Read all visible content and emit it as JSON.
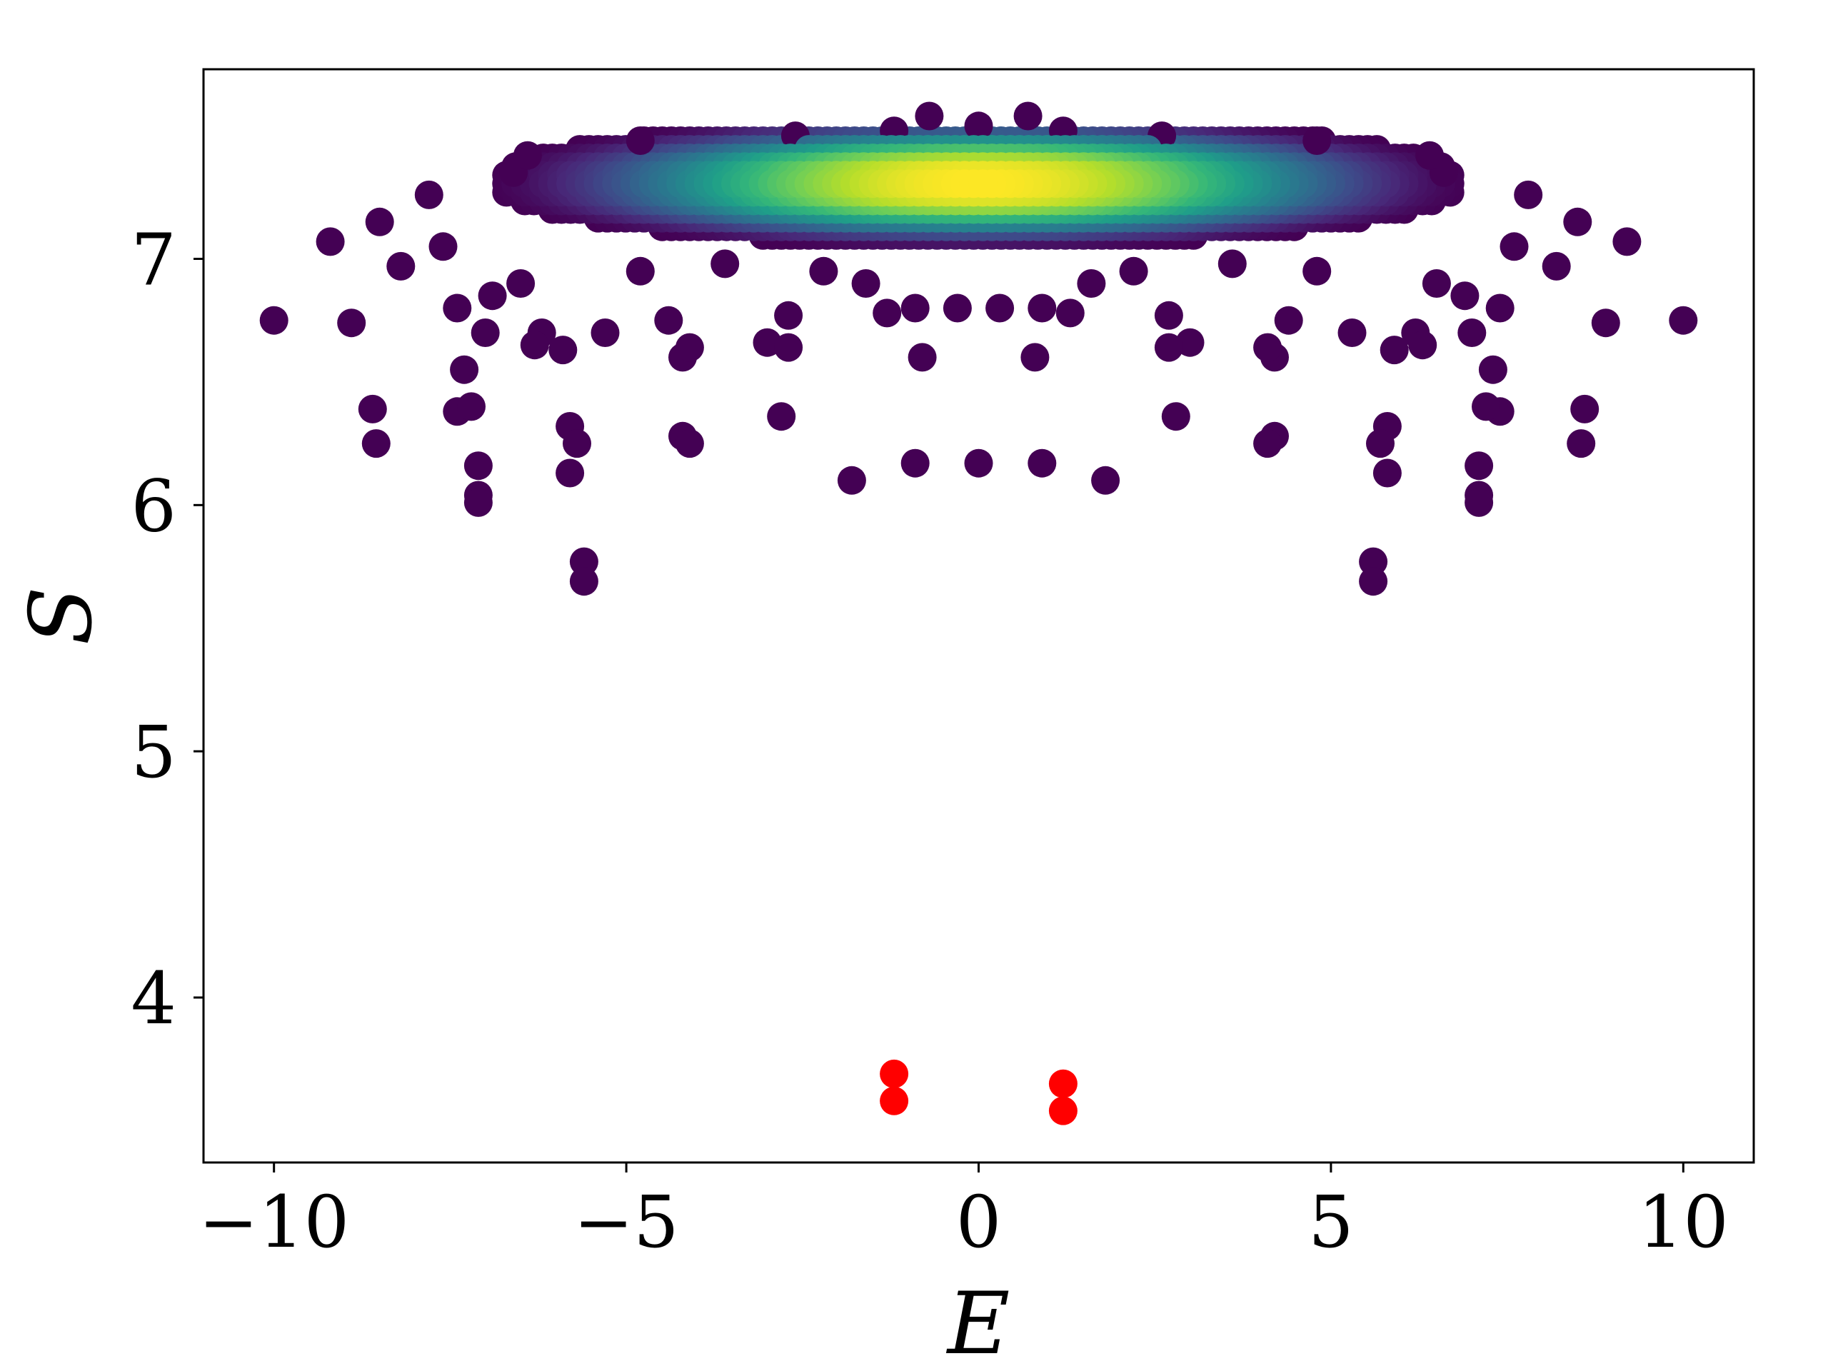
{
  "chart_data": {
    "type": "scatter",
    "title": "",
    "xlabel": "E",
    "ylabel": "S",
    "xlim": [
      -11,
      11
    ],
    "ylim": [
      3.33,
      7.77
    ],
    "x_ticks": [
      -10,
      -5,
      0,
      5,
      10
    ],
    "x_tick_labels": [
      "−10",
      "−5",
      "0",
      "5",
      "10"
    ],
    "y_ticks": [
      4,
      5,
      6,
      7
    ],
    "y_tick_labels": [
      "4",
      "5",
      "6",
      "7"
    ],
    "grid": false,
    "legend": "none",
    "colormap": "viridis",
    "colors": {
      "viridis_low": "#440154",
      "viridis_mid": "#21918c",
      "viridis_high": "#fde725",
      "highlight": "#ff0000"
    },
    "series": [
      {
        "color_by": "density",
        "points": [
          [
            -10.0,
            6.75
          ],
          [
            10.0,
            6.75
          ],
          [
            -9.2,
            7.07
          ],
          [
            9.2,
            7.07
          ],
          [
            -8.9,
            6.74
          ],
          [
            8.9,
            6.74
          ],
          [
            -8.5,
            7.15
          ],
          [
            8.5,
            7.15
          ],
          [
            -8.6,
            6.39
          ],
          [
            8.6,
            6.39
          ],
          [
            -8.55,
            6.25
          ],
          [
            8.55,
            6.25
          ],
          [
            -8.2,
            6.97
          ],
          [
            8.2,
            6.97
          ],
          [
            -7.8,
            7.26
          ],
          [
            7.8,
            7.26
          ],
          [
            -7.4,
            6.8
          ],
          [
            7.4,
            6.8
          ],
          [
            -7.4,
            6.38
          ],
          [
            7.4,
            6.38
          ],
          [
            -7.2,
            6.4
          ],
          [
            7.2,
            6.4
          ],
          [
            -7.3,
            6.55
          ],
          [
            7.3,
            6.55
          ],
          [
            -7.1,
            6.16
          ],
          [
            7.1,
            6.16
          ],
          [
            -7.1,
            6.04
          ],
          [
            7.1,
            6.04
          ],
          [
            -7.1,
            6.01
          ],
          [
            7.1,
            6.01
          ],
          [
            -7.0,
            6.7
          ],
          [
            7.0,
            6.7
          ],
          [
            -6.9,
            6.85
          ],
          [
            6.9,
            6.85
          ],
          [
            -6.2,
            6.7
          ],
          [
            6.2,
            6.7
          ],
          [
            -6.3,
            6.65
          ],
          [
            6.3,
            6.65
          ],
          [
            -5.9,
            6.63
          ],
          [
            5.9,
            6.63
          ],
          [
            -5.8,
            6.32
          ],
          [
            5.8,
            6.32
          ],
          [
            -5.7,
            6.25
          ],
          [
            5.7,
            6.25
          ],
          [
            -5.8,
            6.13
          ],
          [
            5.8,
            6.13
          ],
          [
            -5.6,
            5.77
          ],
          [
            5.6,
            5.77
          ],
          [
            -5.6,
            5.69
          ],
          [
            5.6,
            5.69
          ],
          [
            -5.3,
            6.7
          ],
          [
            5.3,
            6.7
          ],
          [
            -4.4,
            6.75
          ],
          [
            4.4,
            6.75
          ],
          [
            -4.2,
            6.6
          ],
          [
            4.2,
            6.6
          ],
          [
            -4.1,
            6.64
          ],
          [
            4.1,
            6.64
          ],
          [
            -4.2,
            6.28
          ],
          [
            4.2,
            6.28
          ],
          [
            -4.1,
            6.25
          ],
          [
            4.1,
            6.25
          ],
          [
            -3.0,
            6.66
          ],
          [
            3.0,
            6.66
          ],
          [
            -2.7,
            6.77
          ],
          [
            2.7,
            6.77
          ],
          [
            -2.7,
            6.64
          ],
          [
            2.7,
            6.64
          ],
          [
            -2.8,
            6.36
          ],
          [
            2.8,
            6.36
          ],
          [
            -1.8,
            6.1
          ],
          [
            1.8,
            6.1
          ],
          [
            -1.3,
            6.78
          ],
          [
            1.3,
            6.78
          ],
          [
            -0.9,
            6.17
          ],
          [
            0.9,
            6.17
          ],
          [
            0.0,
            6.17
          ],
          [
            -0.8,
            6.6
          ],
          [
            0.8,
            6.6
          ],
          [
            -0.3,
            6.8
          ],
          [
            0.3,
            6.8
          ],
          [
            -0.9,
            6.8
          ],
          [
            0.9,
            6.8
          ],
          [
            -1.6,
            6.9
          ],
          [
            1.6,
            6.9
          ],
          [
            -2.2,
            6.95
          ],
          [
            2.2,
            6.95
          ],
          [
            -3.6,
            6.98
          ],
          [
            3.6,
            6.98
          ],
          [
            -4.8,
            6.95
          ],
          [
            4.8,
            6.95
          ],
          [
            -6.5,
            6.9
          ],
          [
            6.5,
            6.9
          ],
          [
            -7.6,
            7.05
          ],
          [
            7.6,
            7.05
          ],
          [
            -6.6,
            7.35
          ],
          [
            6.6,
            7.35
          ],
          [
            -6.4,
            7.42
          ],
          [
            6.4,
            7.42
          ],
          [
            -4.8,
            7.48
          ],
          [
            4.8,
            7.48
          ],
          [
            -0.7,
            7.58
          ],
          [
            0.7,
            7.58
          ],
          [
            0.0,
            7.54
          ],
          [
            -2.6,
            7.5
          ],
          [
            2.6,
            7.5
          ],
          [
            -1.2,
            7.52
          ],
          [
            1.2,
            7.52
          ]
        ]
      },
      {
        "color": "#ff0000",
        "points": [
          [
            -1.2,
            3.69
          ],
          [
            -1.2,
            3.58
          ],
          [
            1.2,
            3.65
          ],
          [
            1.2,
            3.54
          ]
        ]
      }
    ]
  }
}
